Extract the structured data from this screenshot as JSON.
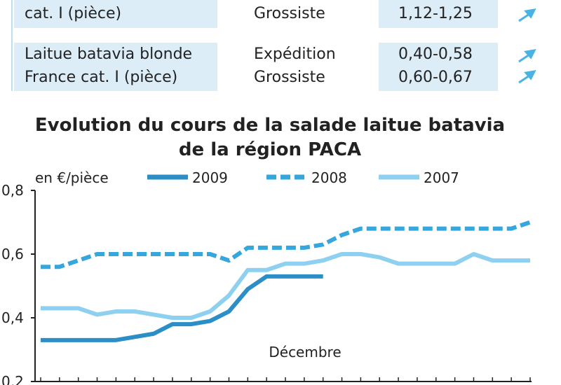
{
  "table": {
    "rows": [
      [
        [
          "cat. I (pièce)"
        ],
        [
          "Grossiste"
        ],
        [
          "1,12-1,25"
        ]
      ],
      [
        [
          "Laitue batavia blonde",
          "France cat. I (pièce)"
        ],
        [
          "Expédition",
          "Grossiste"
        ],
        [
          "0,40-0,58",
          "0,60-0,67"
        ]
      ]
    ]
  },
  "chart_data": {
    "type": "line",
    "title": [
      "Evolution du cours de la salade laitue batavia",
      "de la région PACA"
    ],
    "ylabel": "en €/pièce",
    "annotation": "Décembre",
    "categories": [
      null,
      null,
      null,
      null,
      null,
      null,
      null,
      null,
      null,
      null,
      null,
      null,
      null,
      null,
      null,
      null,
      null,
      null,
      null,
      null,
      null,
      null,
      null,
      null,
      null,
      null,
      null
    ],
    "series": [
      {
        "name": "2009",
        "color": "#2b8ec6",
        "dash": false,
        "values": [
          0.33,
          0.33,
          0.33,
          0.33,
          0.33,
          0.34,
          0.35,
          0.38,
          0.38,
          0.39,
          0.42,
          0.49,
          0.53,
          0.53,
          0.53,
          0.53,
          null,
          null,
          null,
          null,
          null,
          null,
          null,
          null,
          null,
          null,
          null
        ]
      },
      {
        "name": "2008",
        "color": "#36a7dc",
        "dash": true,
        "values": [
          0.56,
          0.56,
          0.58,
          0.6,
          0.6,
          0.6,
          0.6,
          0.6,
          0.6,
          0.6,
          0.58,
          0.62,
          0.62,
          0.62,
          0.62,
          0.63,
          0.66,
          0.68,
          0.68,
          0.68,
          0.68,
          0.68,
          0.68,
          0.68,
          0.68,
          0.68,
          0.7
        ]
      },
      {
        "name": "2007",
        "color": "#8ed0ef",
        "dash": false,
        "values": [
          0.43,
          0.43,
          0.43,
          0.41,
          0.42,
          0.42,
          0.41,
          0.4,
          0.4,
          0.42,
          0.47,
          0.55,
          0.55,
          0.57,
          0.57,
          0.58,
          0.6,
          0.6,
          0.59,
          0.57,
          0.57,
          0.57,
          0.57,
          0.6,
          0.58,
          0.58,
          0.58
        ]
      }
    ],
    "ylim": [
      0.2,
      0.8
    ],
    "yticks": [
      {
        "value": 0.2,
        "label": "0,2"
      },
      {
        "value": 0.4,
        "label": "0,4"
      },
      {
        "value": 0.6,
        "label": "0,6"
      },
      {
        "value": 0.8,
        "label": "0,8"
      }
    ],
    "grid": false
  }
}
